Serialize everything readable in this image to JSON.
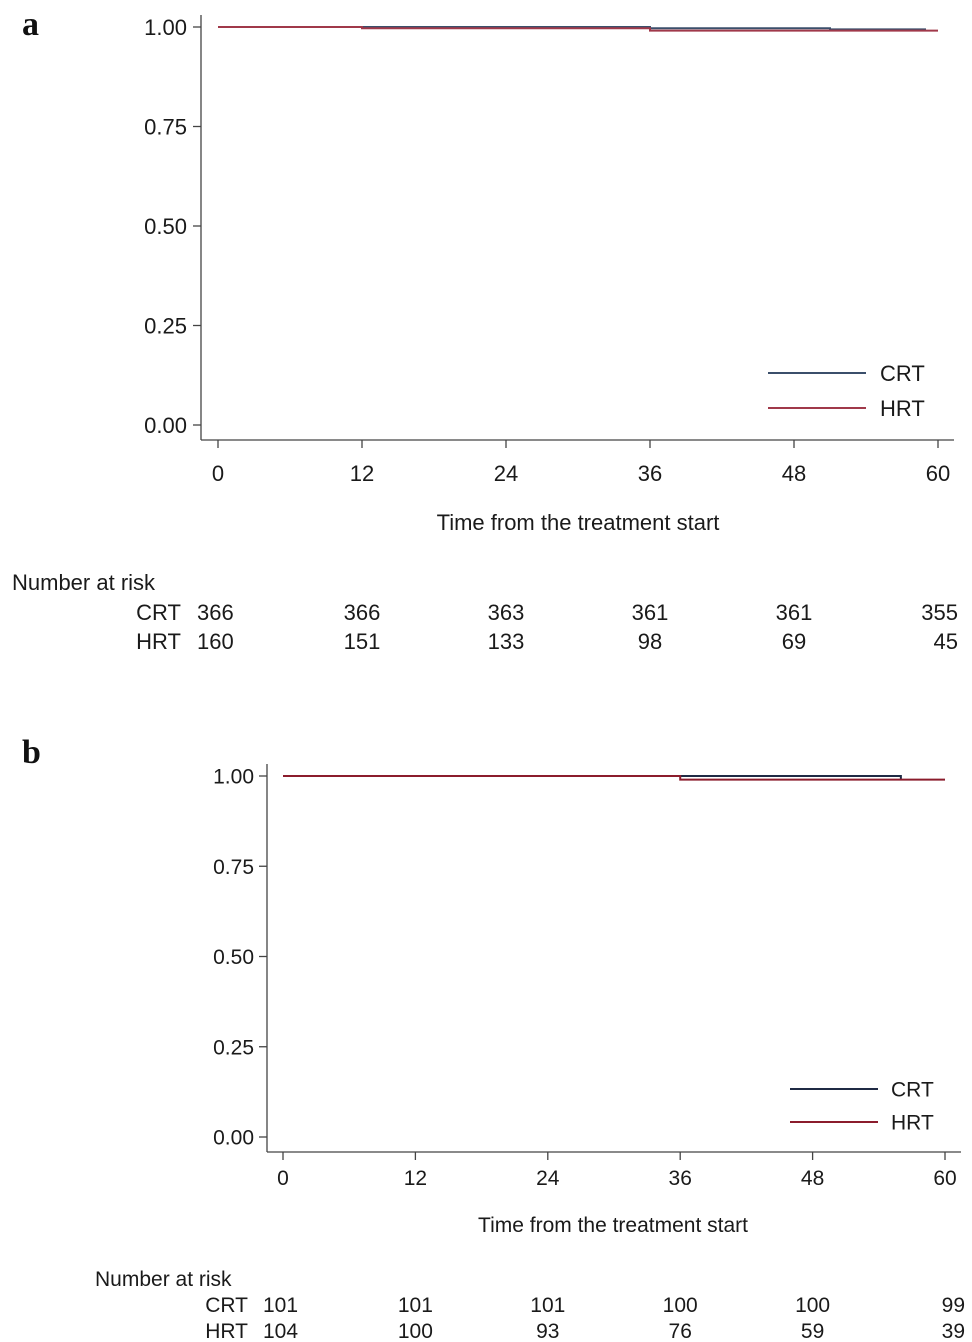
{
  "chart_data": [
    {
      "panel": "a",
      "type": "line",
      "xlabel": "Time from the treatment start",
      "ylabel": "",
      "xlim": [
        0,
        60
      ],
      "ylim": [
        0,
        1
      ],
      "x_ticks": [
        "0",
        "12",
        "24",
        "36",
        "48",
        "60"
      ],
      "y_ticks": [
        "0.00",
        "0.25",
        "0.50",
        "0.75",
        "1.00"
      ],
      "legend_position": "bottom-right",
      "series": [
        {
          "name": "CRT",
          "color": "#3b4f6b",
          "x": [
            0,
            36,
            51,
            59
          ],
          "y": [
            1.0,
            0.997,
            0.994,
            0.994
          ]
        },
        {
          "name": "HRT",
          "color": "#a0394a",
          "x": [
            0,
            12,
            36,
            56,
            60
          ],
          "y": [
            1.0,
            0.997,
            0.991,
            0.991,
            0.991
          ]
        }
      ],
      "risk_table": {
        "title": "Number at risk",
        "times": [
          0,
          12,
          24,
          36,
          48,
          60
        ],
        "rows": [
          {
            "label": "CRT",
            "values": [
              "366",
              "366",
              "363",
              "361",
              "361",
              "355"
            ]
          },
          {
            "label": "HRT",
            "values": [
              "160",
              "151",
              "133",
              "98",
              "69",
              "45"
            ]
          }
        ]
      }
    },
    {
      "panel": "b",
      "type": "line",
      "xlabel": "Time from the treatment start",
      "ylabel": "",
      "xlim": [
        0,
        60
      ],
      "ylim": [
        0,
        1
      ],
      "x_ticks": [
        "0",
        "12",
        "24",
        "36",
        "48",
        "60"
      ],
      "y_ticks": [
        "0.00",
        "0.25",
        "0.50",
        "0.75",
        "1.00"
      ],
      "legend_position": "bottom-right",
      "series": [
        {
          "name": "CRT",
          "color": "#1f2a44",
          "x": [
            0,
            56
          ],
          "y": [
            1.0,
            0.99
          ]
        },
        {
          "name": "HRT",
          "color": "#8b1c2c",
          "x": [
            0,
            36,
            60
          ],
          "y": [
            1.0,
            0.99,
            0.99
          ]
        }
      ],
      "risk_table": {
        "title": "Number at risk",
        "times": [
          0,
          12,
          24,
          36,
          48,
          60
        ],
        "rows": [
          {
            "label": "CRT",
            "values": [
              "101",
              "101",
              "101",
              "100",
              "100",
              "99"
            ]
          },
          {
            "label": "HRT",
            "values": [
              "104",
              "100",
              "93",
              "76",
              "59",
              "39"
            ]
          }
        ]
      }
    }
  ],
  "panel_letters": [
    "a",
    "b"
  ]
}
